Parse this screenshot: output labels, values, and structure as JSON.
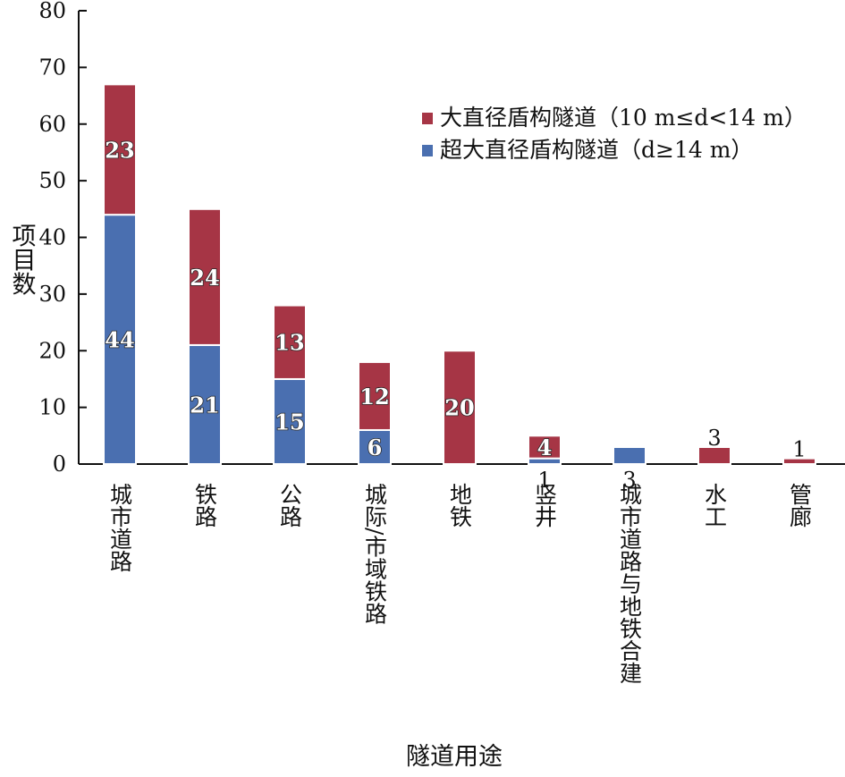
{
  "chart_data": {
    "type": "bar",
    "stacked": true,
    "title": "",
    "xlabel": "隧道用途",
    "ylabel": "项目数",
    "ylim": [
      0,
      80
    ],
    "yticks": [
      0,
      10,
      20,
      30,
      40,
      50,
      60,
      70,
      80
    ],
    "categories": [
      "城市道路",
      "铁路",
      "公路",
      "城际/市域铁路",
      "地铁",
      "竖井",
      "城市道路与地铁合建",
      "水工",
      "管廊"
    ],
    "series": [
      {
        "name": "超大直径盾构隧道（d≥14 m）",
        "color": "#4a6fb0",
        "values": [
          44,
          21,
          15,
          6,
          0,
          1,
          3,
          0,
          0
        ],
        "labels": [
          "44",
          "21",
          "15",
          "6",
          "",
          "1",
          "3",
          "",
          ""
        ]
      },
      {
        "name": "大直径盾构隧道（10 m≤d<14 m）",
        "color": "#a63545",
        "values": [
          23,
          24,
          13,
          12,
          20,
          4,
          0,
          3,
          1
        ],
        "labels": [
          "23",
          "24",
          "13",
          "12",
          "20",
          "4",
          "",
          "3",
          "1"
        ]
      }
    ],
    "legend": {
      "position": "top-right",
      "entries": [
        {
          "color": "#a63545",
          "text": "大直径盾构隧道（10 m≤d<14 m）"
        },
        {
          "color": "#4a6fb0",
          "text": "超大直径盾构隧道（d≥14 m）"
        }
      ]
    },
    "grid": false
  }
}
